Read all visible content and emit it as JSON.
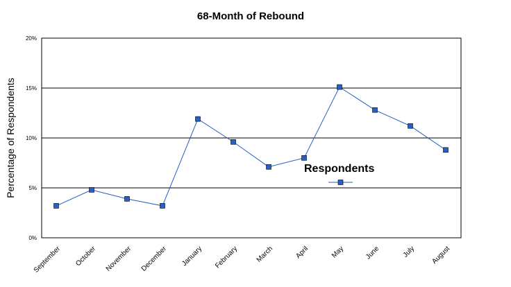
{
  "chart_data": {
    "type": "line",
    "title": "68-Month of Rebound",
    "xlabel": "",
    "ylabel": "Percentage of Respondents",
    "categories": [
      "September",
      "October",
      "November",
      "December",
      "January",
      "February",
      "March",
      "April",
      "May",
      "June",
      "July",
      "August"
    ],
    "series": [
      {
        "name": "Respondents",
        "values": [
          3.2,
          4.8,
          3.9,
          3.2,
          11.9,
          9.6,
          7.1,
          8.0,
          15.1,
          12.8,
          11.2,
          8.8
        ],
        "color": "#1f5fbf",
        "marker_color": "#2a5fc8",
        "marker": "square"
      }
    ],
    "ylim": [
      0,
      20
    ],
    "yticks": [
      "0%",
      "5%",
      "10%",
      "15%",
      "20%"
    ],
    "ytick_values": [
      0,
      5,
      10,
      15,
      20
    ],
    "grid": true,
    "legend": "center-right"
  }
}
